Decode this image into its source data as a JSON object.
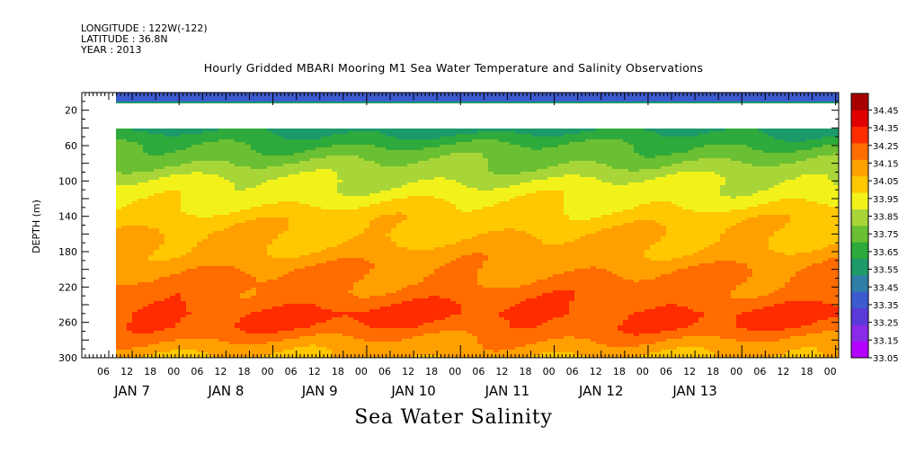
{
  "header": {
    "longitude": "LONGITUDE : 122W(-122)",
    "latitude": "LATITUDE : 36.8N",
    "year": "YEAR : 2013"
  },
  "chart_data": {
    "type": "heatmap",
    "title": "Hourly Gridded MBARI Mooring M1 Sea Water Temperature and Salinity Observations",
    "variable_title": "Sea Water Salinity",
    "ylabel": "DEPTH (m)",
    "y_ticks": [
      20,
      60,
      100,
      140,
      180,
      220,
      260,
      300
    ],
    "y_range": [
      0,
      300
    ],
    "y_inverted": true,
    "x_hour_ticks": [
      "06",
      "12",
      "18",
      "00",
      "06",
      "12",
      "18",
      "00",
      "06",
      "12",
      "18",
      "00",
      "06",
      "12",
      "18",
      "00",
      "06",
      "12",
      "18",
      "00",
      "06",
      "12",
      "18",
      "00",
      "06",
      "12",
      "18",
      "00",
      "06",
      "12",
      "18",
      "00"
    ],
    "x_day_labels": [
      "JAN  7",
      "JAN  8",
      "JAN  9",
      "JAN 10",
      "JAN 11",
      "JAN 12",
      "JAN 13"
    ],
    "colorbar": {
      "levels": [
        33.05,
        33.15,
        33.25,
        33.35,
        33.45,
        33.55,
        33.65,
        33.75,
        33.85,
        33.95,
        34.05,
        34.15,
        34.25,
        34.35,
        34.45
      ],
      "labels": [
        "33.05",
        "33.15",
        "33.25",
        "33.35",
        "33.45",
        "33.55",
        "33.65",
        "33.75",
        "33.85",
        "33.95",
        "34.05",
        "34.15",
        "34.25",
        "34.35",
        "34.45"
      ],
      "colors": [
        "#b400ff",
        "#8a2be8",
        "#5a3ad8",
        "#3d5bcf",
        "#2e7ea8",
        "#1c9a6a",
        "#2eaa3c",
        "#6abf32",
        "#a8d638",
        "#f2f21a",
        "#ffc800",
        "#ffa000",
        "#ff6c00",
        "#ff2c00",
        "#e00000",
        "#a80000"
      ]
    },
    "profile": [
      {
        "depth": 10,
        "value": 33.3
      },
      {
        "depth": 40,
        "value": 33.5
      },
      {
        "depth": 60,
        "value": 33.65
      },
      {
        "depth": 80,
        "value": 33.75
      },
      {
        "depth": 100,
        "value": 33.85
      },
      {
        "depth": 120,
        "value": 33.92
      },
      {
        "depth": 140,
        "value": 34.0
      },
      {
        "depth": 180,
        "value": 34.08
      },
      {
        "depth": 200,
        "value": 34.14
      },
      {
        "depth": 230,
        "value": 34.2
      },
      {
        "depth": 250,
        "value": 34.27
      },
      {
        "depth": 265,
        "value": 34.24
      },
      {
        "depth": 285,
        "value": 34.12
      },
      {
        "depth": 300,
        "value": 34.05
      }
    ]
  }
}
